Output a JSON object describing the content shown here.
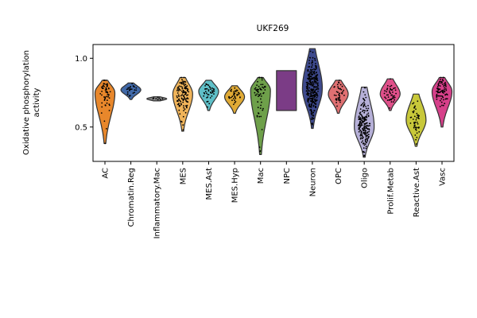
{
  "chart_data": {
    "type": "violin",
    "title": "UKF269",
    "ylabel_lines": [
      "Oxidative phosphorylation",
      "activity"
    ],
    "ylim": [
      0.25,
      1.1
    ],
    "yticks": [
      0.5,
      1.0
    ],
    "ytick_labels": [
      "0.5",
      "1.0"
    ],
    "grid": false,
    "legend": "none",
    "points_color": "#000000",
    "categories": [
      "AC",
      "Chromatin.Reg",
      "Inflammatory.Mac",
      "MES",
      "MES.Ast",
      "MES.Hyp",
      "Mac",
      "NPC",
      "Neuron",
      "OPC",
      "Oligo",
      "Prolif.Metab",
      "Reactive.Ast",
      "Vasc"
    ],
    "colors": [
      "#e8872b",
      "#4169a8",
      "#888888",
      "#f0b45a",
      "#5fc0c8",
      "#e0aa35",
      "#6ea04a",
      "#7b3c86",
      "#3e4a8e",
      "#e07072",
      "#b6b0d8",
      "#e0508a",
      "#c8c83a",
      "#d6408a"
    ],
    "violins": [
      {
        "min": 0.38,
        "max": 0.84,
        "median": 0.75,
        "n": 60
      },
      {
        "min": 0.7,
        "max": 0.82,
        "median": 0.77,
        "n": 25
      },
      {
        "min": 0.69,
        "max": 0.72,
        "median": 0.705,
        "n": 8
      },
      {
        "min": 0.47,
        "max": 0.86,
        "median": 0.74,
        "n": 120
      },
      {
        "min": 0.62,
        "max": 0.84,
        "median": 0.76,
        "n": 40
      },
      {
        "min": 0.6,
        "max": 0.8,
        "median": 0.72,
        "n": 35
      },
      {
        "min": 0.3,
        "max": 0.86,
        "median": 0.77,
        "n": 60
      },
      {
        "min": 0.62,
        "max": 0.91,
        "median": 0.76,
        "n": 0
      },
      {
        "min": 0.49,
        "max": 1.07,
        "median": 0.78,
        "n": 300
      },
      {
        "min": 0.6,
        "max": 0.84,
        "median": 0.74,
        "n": 40
      },
      {
        "min": 0.28,
        "max": 0.79,
        "median": 0.5,
        "n": 200
      },
      {
        "min": 0.62,
        "max": 0.85,
        "median": 0.74,
        "n": 45
      },
      {
        "min": 0.36,
        "max": 0.74,
        "median": 0.55,
        "n": 50
      },
      {
        "min": 0.5,
        "max": 0.86,
        "median": 0.76,
        "n": 80
      }
    ]
  }
}
